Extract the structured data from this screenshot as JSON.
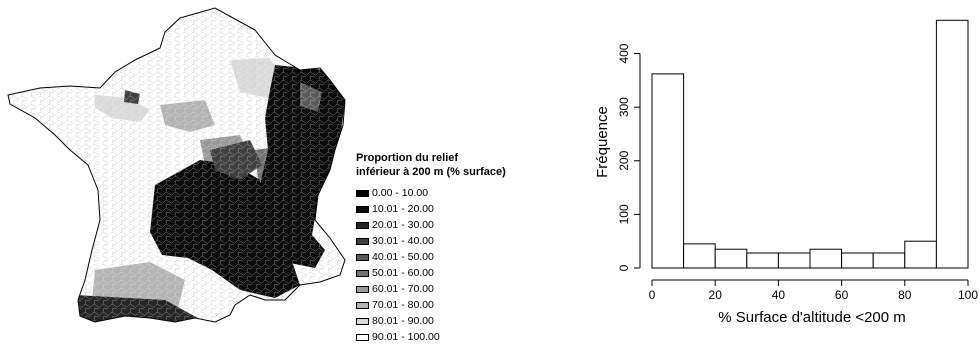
{
  "map": {
    "legend": {
      "title_line1": "Proportion du relief",
      "title_line2": "inférieur à 200 m (% surface)",
      "classes": [
        {
          "label": "0.00 - 10.00",
          "color": "#000000"
        },
        {
          "label": "10.01 - 20.00",
          "color": "#0d0d0d"
        },
        {
          "label": "20.01 - 30.00",
          "color": "#262626"
        },
        {
          "label": "30.01 - 40.00",
          "color": "#404040"
        },
        {
          "label": "40.01 - 50.00",
          "color": "#595959"
        },
        {
          "label": "50.01 - 60.00",
          "color": "#737373"
        },
        {
          "label": "60.01 - 70.00",
          "color": "#999999"
        },
        {
          "label": "70.01 - 80.00",
          "color": "#b3b3b3"
        },
        {
          "label": "80.01 - 90.00",
          "color": "#d9d9d9"
        },
        {
          "label": "90.01 - 100.00",
          "color": "#ffffff"
        }
      ]
    }
  },
  "chart_data": {
    "type": "bar",
    "subtype": "histogram",
    "xlabel": "% Surface d'altitude <200 m",
    "ylabel": "Fréquence",
    "bins": [
      [
        0,
        10
      ],
      [
        10,
        20
      ],
      [
        20,
        30
      ],
      [
        30,
        40
      ],
      [
        40,
        50
      ],
      [
        50,
        60
      ],
      [
        60,
        70
      ],
      [
        70,
        80
      ],
      [
        80,
        90
      ],
      [
        90,
        100
      ]
    ],
    "values": [
      362,
      45,
      35,
      28,
      28,
      35,
      28,
      28,
      50,
      462
    ],
    "xlim": [
      0,
      100
    ],
    "ylim": [
      0,
      470
    ],
    "x_ticks": [
      0,
      20,
      40,
      60,
      80,
      100
    ],
    "y_ticks": [
      0,
      100,
      200,
      300,
      400
    ],
    "grid": false
  }
}
